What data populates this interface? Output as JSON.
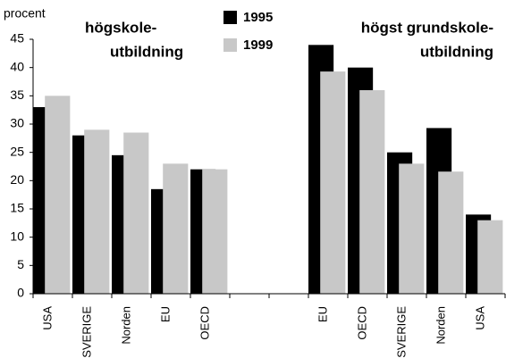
{
  "chart_data": {
    "type": "bar",
    "y_label": "procent",
    "annotations": [
      [
        "högskole-",
        "utbildning"
      ],
      [
        "högst grundskole-",
        "utbildning"
      ]
    ],
    "categories": [
      "USA",
      "SVERIGE",
      "Norden",
      "EU",
      "OECD",
      null,
      null,
      "EU",
      "OECD",
      "SVERIGE",
      "Norden",
      "USA"
    ],
    "series": [
      {
        "name": "1995",
        "color": "#000000",
        "values": [
          33,
          28,
          24.5,
          18.5,
          22,
          null,
          null,
          44,
          40,
          25,
          29.3,
          14
        ]
      },
      {
        "name": "1999",
        "color": "#c8c8c8",
        "values": [
          35,
          29,
          28.5,
          23,
          22,
          null,
          null,
          39.3,
          36,
          23,
          21.6,
          13
        ]
      }
    ],
    "ylim": [
      0,
      45
    ],
    "yticks": [
      0,
      5,
      10,
      15,
      20,
      25,
      30,
      35,
      40,
      45
    ],
    "legend": "top",
    "grid": false
  }
}
